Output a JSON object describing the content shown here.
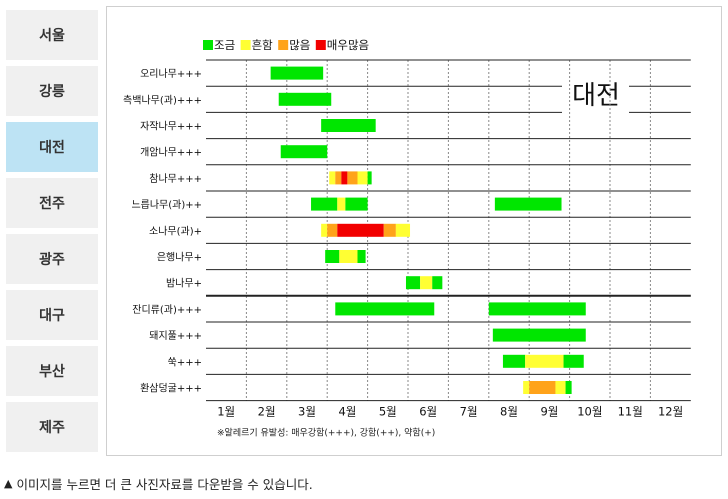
{
  "sidebar": {
    "items": [
      {
        "label": "서울",
        "active": false
      },
      {
        "label": "강릉",
        "active": false
      },
      {
        "label": "대전",
        "active": true
      },
      {
        "label": "전주",
        "active": false
      },
      {
        "label": "광주",
        "active": false
      },
      {
        "label": "대구",
        "active": false
      },
      {
        "label": "부산",
        "active": false
      },
      {
        "label": "제주",
        "active": false
      }
    ]
  },
  "chart_data": {
    "type": "table",
    "title": "대전",
    "legend": [
      {
        "label": "조금",
        "color": "#00e600"
      },
      {
        "label": "흔함",
        "color": "#ffff33"
      },
      {
        "label": "많음",
        "color": "#ffa31a"
      },
      {
        "label": "매우많음",
        "color": "#f20000"
      }
    ],
    "months": [
      "1월",
      "2월",
      "3월",
      "4월",
      "5월",
      "6월",
      "7월",
      "8월",
      "9월",
      "10월",
      "11월",
      "12월"
    ],
    "footnote": "※알레르기 유발성: 매우강함(+++), 강함(++), 약함(+)",
    "rows": [
      {
        "label": "오리나무+++",
        "segments": [
          {
            "start": 2.6,
            "end": 3.9,
            "level": 1
          }
        ]
      },
      {
        "label": "측백나무(과)+++",
        "segments": [
          {
            "start": 2.8,
            "end": 4.1,
            "level": 1
          }
        ]
      },
      {
        "label": "자작나무+++",
        "segments": [
          {
            "start": 3.85,
            "end": 5.2,
            "level": 1
          }
        ]
      },
      {
        "label": "개암나무+++",
        "segments": [
          {
            "start": 2.85,
            "end": 4.0,
            "level": 1
          }
        ]
      },
      {
        "label": "참나무+++",
        "segments": [
          {
            "start": 4.05,
            "end": 4.2,
            "level": 2
          },
          {
            "start": 4.2,
            "end": 4.35,
            "level": 3
          },
          {
            "start": 4.35,
            "end": 4.5,
            "level": 4
          },
          {
            "start": 4.5,
            "end": 4.75,
            "level": 3
          },
          {
            "start": 4.75,
            "end": 5.0,
            "level": 2
          },
          {
            "start": 5.0,
            "end": 5.1,
            "level": 1
          }
        ]
      },
      {
        "label": "느릅나무(과)++",
        "segments": [
          {
            "start": 3.6,
            "end": 4.25,
            "level": 1
          },
          {
            "start": 4.25,
            "end": 4.45,
            "level": 2
          },
          {
            "start": 4.45,
            "end": 5.0,
            "level": 1
          },
          {
            "start": 8.15,
            "end": 9.8,
            "level": 1
          }
        ]
      },
      {
        "label": "소나무(과)+",
        "segments": [
          {
            "start": 3.85,
            "end": 4.0,
            "level": 2
          },
          {
            "start": 4.0,
            "end": 4.25,
            "level": 3
          },
          {
            "start": 4.25,
            "end": 5.4,
            "level": 4
          },
          {
            "start": 5.4,
            "end": 5.7,
            "level": 3
          },
          {
            "start": 5.7,
            "end": 6.05,
            "level": 2
          }
        ]
      },
      {
        "label": "은행나무+",
        "segments": [
          {
            "start": 3.95,
            "end": 4.3,
            "level": 1
          },
          {
            "start": 4.3,
            "end": 4.75,
            "level": 2
          },
          {
            "start": 4.75,
            "end": 4.95,
            "level": 1
          }
        ]
      },
      {
        "label": "밤나무+",
        "segments": [
          {
            "start": 5.95,
            "end": 6.3,
            "level": 1
          },
          {
            "start": 6.3,
            "end": 6.6,
            "level": 2
          },
          {
            "start": 6.6,
            "end": 6.85,
            "level": 1
          }
        ]
      },
      {
        "label": "잔디류(과)+++",
        "segments": [
          {
            "start": 4.2,
            "end": 6.65,
            "level": 1
          },
          {
            "start": 8.0,
            "end": 10.4,
            "level": 1
          }
        ]
      },
      {
        "label": "돼지풀+++",
        "segments": [
          {
            "start": 8.1,
            "end": 10.4,
            "level": 1
          }
        ]
      },
      {
        "label": "쑥+++",
        "segments": [
          {
            "start": 8.35,
            "end": 8.9,
            "level": 1
          },
          {
            "start": 8.9,
            "end": 9.85,
            "level": 2
          },
          {
            "start": 9.85,
            "end": 10.35,
            "level": 1
          }
        ]
      },
      {
        "label": "환삼덩굴+++",
        "segments": [
          {
            "start": 8.85,
            "end": 9.0,
            "level": 2
          },
          {
            "start": 9.0,
            "end": 9.65,
            "level": 3
          },
          {
            "start": 9.65,
            "end": 9.9,
            "level": 2
          },
          {
            "start": 9.9,
            "end": 10.05,
            "level": 1
          }
        ]
      }
    ]
  },
  "footer": {
    "marker": "▲",
    "text": "이미지를 누르면 더 큰 사진자료를 다운받을 수 있습니다."
  }
}
